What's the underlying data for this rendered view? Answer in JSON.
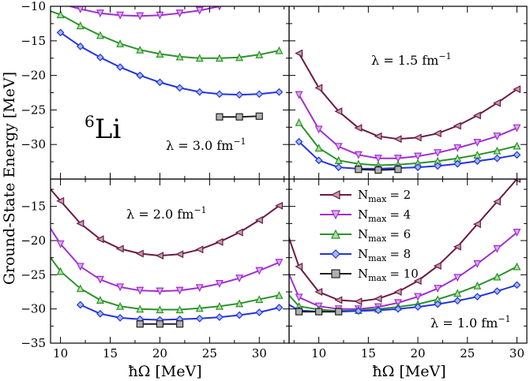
{
  "chart_data": {
    "type": "line",
    "ylabel": "Ground-State Energy [MeV]",
    "xlabel": "ħΩ [MeV]",
    "nucleus": {
      "mass_number": "6",
      "symbol": "Li"
    },
    "colors": {
      "2": "#6b1a45",
      "4": "#a12ed0",
      "6": "#2a922a",
      "8": "#2233dd",
      "10": "#222222"
    },
    "fills": {
      "2": "#c49ab0",
      "4": "#dca8f0",
      "6": "#aee0a0",
      "8": "#a4baf8",
      "10": "#b0b0b0"
    },
    "legend": {
      "position": "middle-right",
      "entries": [
        {
          "key": "2",
          "label": "N",
          "sub": "max",
          "value": "= 2"
        },
        {
          "key": "4",
          "label": "N",
          "sub": "max",
          "value": "= 4"
        },
        {
          "key": "6",
          "label": "N",
          "sub": "max",
          "value": "= 6"
        },
        {
          "key": "8",
          "label": "N",
          "sub": "max",
          "value": "= 8"
        },
        {
          "key": "10",
          "label": "N",
          "sub": "max",
          "value": "= 10"
        }
      ]
    },
    "panels": [
      {
        "id": "top-left",
        "lambda": "λ = 3.0 fm",
        "lambda_sup": "−1",
        "xlim": [
          9,
          33
        ],
        "ylim": [
          -35,
          -10
        ],
        "x_ticks": [],
        "y_ticks": [
          -30,
          -25,
          -20,
          -15,
          -10
        ],
        "series": [
          {
            "nmax": "2",
            "x": [],
            "y": []
          },
          {
            "nmax": "4",
            "x": [
              8,
              10,
              12,
              14,
              16,
              18,
              20,
              22,
              24,
              26
            ],
            "y": [
              -8.5,
              -9.6,
              -10.4,
              -11.0,
              -11.3,
              -11.4,
              -11.3,
              -11.0,
              -10.6,
              -10.0
            ]
          },
          {
            "nmax": "6",
            "x": [
              8,
              10,
              12,
              14,
              16,
              18,
              20,
              22,
              24,
              26,
              28,
              30,
              32
            ],
            "y": [
              -10.2,
              -11.2,
              -12.8,
              -14.2,
              -15.4,
              -16.3,
              -16.9,
              -17.3,
              -17.5,
              -17.5,
              -17.4,
              -17.0,
              -16.4
            ]
          },
          {
            "nmax": "8",
            "x": [
              10,
              12,
              14,
              16,
              18,
              20,
              22,
              24,
              26,
              28,
              30,
              32
            ],
            "y": [
              -13.8,
              -15.8,
              -17.4,
              -18.8,
              -20.0,
              -21.0,
              -21.8,
              -22.4,
              -22.7,
              -22.8,
              -22.7,
              -22.4
            ]
          },
          {
            "nmax": "10",
            "x": [
              26,
              28,
              30
            ],
            "y": [
              -26.0,
              -26.0,
              -25.9
            ]
          }
        ]
      },
      {
        "id": "top-right",
        "lambda": "λ = 1.5 fm",
        "lambda_sup": "−1",
        "xlim": [
          7,
          31
        ],
        "ylim": [
          -35,
          -10
        ],
        "x_ticks": [],
        "y_ticks": [],
        "series": [
          {
            "nmax": "2",
            "x": [
              8,
              10,
              12,
              14,
              16,
              18,
              20,
              22,
              24,
              26,
              28,
              30
            ],
            "y": [
              -16.8,
              -21.8,
              -25.2,
              -27.6,
              -28.8,
              -29.2,
              -29.0,
              -28.4,
              -27.3,
              -25.8,
              -24.0,
              -22.0
            ]
          },
          {
            "nmax": "4",
            "x": [
              8,
              10,
              12,
              14,
              16,
              18,
              20,
              22,
              24,
              26,
              28,
              30
            ],
            "y": [
              -22.8,
              -27.8,
              -30.3,
              -31.5,
              -32.0,
              -32.0,
              -31.7,
              -31.2,
              -30.5,
              -29.7,
              -28.8,
              -27.6
            ]
          },
          {
            "nmax": "6",
            "x": [
              8,
              10,
              12,
              14,
              16,
              18,
              20,
              22,
              24,
              26,
              28,
              30
            ],
            "y": [
              -26.8,
              -30.5,
              -32.3,
              -32.8,
              -33.0,
              -32.9,
              -32.7,
              -32.4,
              -32.0,
              -31.5,
              -30.9,
              -30.2
            ]
          },
          {
            "nmax": "8",
            "x": [
              8,
              10,
              12,
              14,
              16,
              18,
              20,
              22,
              24,
              26,
              28,
              30
            ],
            "y": [
              -29.6,
              -32.3,
              -33.3,
              -33.5,
              -33.5,
              -33.4,
              -33.3,
              -33.1,
              -32.8,
              -32.4,
              -32.0,
              -31.5
            ]
          },
          {
            "nmax": "10",
            "x": [
              14,
              16,
              18
            ],
            "y": [
              -33.6,
              -33.7,
              -33.6
            ]
          }
        ]
      },
      {
        "id": "bottom-left",
        "lambda": "λ = 2.0 fm",
        "lambda_sup": "−1",
        "xlim": [
          9,
          33
        ],
        "ylim": [
          -35,
          -11
        ],
        "x_ticks": [
          10,
          15,
          20,
          25,
          30
        ],
        "y_ticks": [
          -35,
          -30,
          -25,
          -20,
          -15
        ],
        "series": [
          {
            "nmax": "2",
            "x": [
              8,
              10,
              12,
              14,
              16,
              18,
              20,
              22,
              24,
              26,
              28,
              30,
              32
            ],
            "y": [
              -10.8,
              -14.2,
              -17.5,
              -19.8,
              -21.2,
              -21.9,
              -22.2,
              -22.0,
              -21.3,
              -20.2,
              -18.8,
              -17.0,
              -14.9
            ]
          },
          {
            "nmax": "4",
            "x": [
              8,
              10,
              12,
              14,
              16,
              18,
              20,
              22,
              24,
              26,
              28,
              30,
              32
            ],
            "y": [
              -16.0,
              -20.5,
              -23.8,
              -25.7,
              -26.8,
              -27.3,
              -27.4,
              -27.3,
              -26.9,
              -26.3,
              -25.5,
              -24.4,
              -23.2
            ]
          },
          {
            "nmax": "6",
            "x": [
              8,
              10,
              12,
              14,
              16,
              18,
              20,
              22,
              24,
              26,
              28,
              30,
              32
            ],
            "y": [
              -20.5,
              -24.5,
              -27.0,
              -28.7,
              -29.6,
              -30.0,
              -30.1,
              -30.1,
              -29.9,
              -29.6,
              -29.2,
              -28.6,
              -28.0
            ]
          },
          {
            "nmax": "8",
            "x": [
              12,
              14,
              16,
              18,
              20,
              22,
              24,
              26,
              28,
              30,
              32
            ],
            "y": [
              -29.4,
              -30.7,
              -31.3,
              -31.5,
              -31.6,
              -31.5,
              -31.4,
              -31.2,
              -30.9,
              -30.5,
              -29.8
            ]
          },
          {
            "nmax": "10",
            "x": [
              18,
              20,
              22
            ],
            "y": [
              -32.2,
              -32.2,
              -32.2
            ]
          }
        ]
      },
      {
        "id": "bottom-right",
        "lambda": "λ = 1.0 fm",
        "lambda_sup": "−1",
        "xlim": [
          7,
          31
        ],
        "ylim": [
          -35,
          -11
        ],
        "x_ticks": [
          10,
          15,
          20,
          25,
          30
        ],
        "y_ticks": [],
        "series": [
          {
            "nmax": "2",
            "x": [
              6,
              8,
              10,
              12,
              14,
              16,
              18,
              20,
              22,
              24,
              26,
              28,
              30
            ],
            "y": [
              -15.5,
              -23.8,
              -27.5,
              -28.7,
              -28.9,
              -28.5,
              -27.5,
              -25.9,
              -23.7,
              -20.9,
              -17.6,
              -14.3,
              -11.0
            ]
          },
          {
            "nmax": "4",
            "x": [
              6,
              8,
              10,
              12,
              14,
              16,
              18,
              20,
              22,
              24,
              26,
              28,
              30
            ],
            "y": [
              -21.6,
              -28.3,
              -29.6,
              -30.0,
              -30.0,
              -29.7,
              -29.1,
              -28.2,
              -27.0,
              -25.4,
              -23.4,
              -21.2,
              -18.8
            ]
          },
          {
            "nmax": "6",
            "x": [
              6,
              8,
              10,
              12,
              14,
              16,
              18,
              20,
              22,
              24,
              26,
              28,
              30
            ],
            "y": [
              -26.4,
              -29.6,
              -30.1,
              -30.3,
              -30.2,
              -30.0,
              -29.7,
              -29.3,
              -28.6,
              -27.7,
              -26.6,
              -25.3,
              -23.8
            ]
          },
          {
            "nmax": "8",
            "x": [
              6,
              8,
              10,
              12,
              14,
              16,
              18,
              20,
              22,
              24,
              26,
              28,
              30
            ],
            "y": [
              -28.6,
              -30.2,
              -30.4,
              -30.4,
              -30.3,
              -30.2,
              -30.0,
              -29.7,
              -29.3,
              -28.8,
              -28.2,
              -27.4,
              -26.5
            ]
          },
          {
            "nmax": "10",
            "x": [
              8,
              10,
              12
            ],
            "y": [
              -30.4,
              -30.4,
              -30.4
            ]
          }
        ]
      }
    ]
  }
}
